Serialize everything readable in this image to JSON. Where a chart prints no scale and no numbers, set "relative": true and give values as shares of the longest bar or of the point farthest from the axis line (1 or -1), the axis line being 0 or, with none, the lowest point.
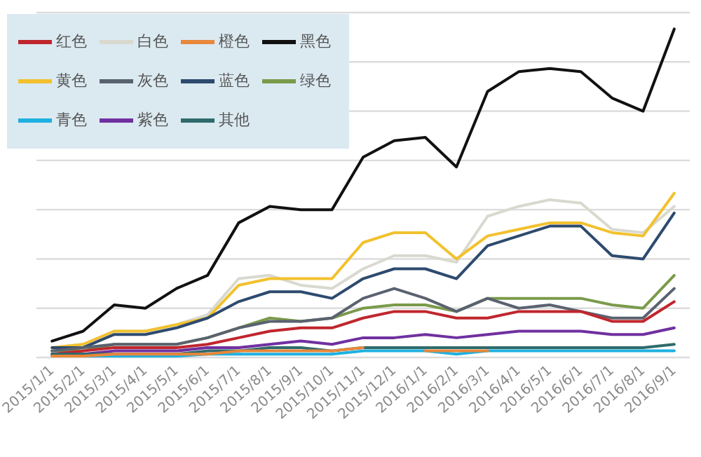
{
  "chart_data": {
    "type": "line",
    "relative": true,
    "grid": "y",
    "legend": "top left",
    "categories": [
      "2015/1/1",
      "2015/2/1",
      "2015/3/1",
      "2015/4/1",
      "2015/5/1",
      "2015/6/1",
      "2015/7/1",
      "2015/8/1",
      "2015/9/1",
      "2015/10/1",
      "2015/11/1",
      "2015/12/1",
      "2016/1/1",
      "2016/2/1",
      "2016/3/1",
      "2016/4/1",
      "2016/5/1",
      "2016/6/1",
      "2016/7/1",
      "2016/8/1",
      "2016/9/1"
    ],
    "series": [
      {
        "name": "红色",
        "color": "#c0262d",
        "values": [
          0.01,
          0.02,
          0.03,
          0.03,
          0.03,
          0.04,
          0.06,
          0.08,
          0.09,
          0.09,
          0.12,
          0.14,
          0.14,
          0.12,
          0.12,
          0.14,
          0.14,
          0.14,
          0.11,
          0.11,
          0.17
        ]
      },
      {
        "name": "白色",
        "color": "#d9d9d0",
        "values": [
          0.03,
          0.04,
          0.08,
          0.08,
          0.1,
          0.13,
          0.24,
          0.25,
          0.22,
          0.21,
          0.27,
          0.31,
          0.31,
          0.29,
          0.43,
          0.46,
          0.48,
          0.47,
          0.39,
          0.38,
          0.46
        ]
      },
      {
        "name": "橙色",
        "color": "#e8873a",
        "values": [
          0.004,
          0.004,
          0.01,
          0.01,
          0.01,
          0.01,
          0.02,
          0.02,
          0.02,
          0.02,
          0.03,
          null,
          0.02,
          0.02,
          0.02,
          null,
          null,
          null,
          null,
          null,
          null
        ]
      },
      {
        "name": "黑色",
        "color": "#111111",
        "values": [
          0.05,
          0.08,
          0.16,
          0.15,
          0.21,
          0.25,
          0.41,
          0.46,
          0.45,
          0.45,
          0.61,
          0.66,
          0.67,
          0.58,
          0.81,
          0.87,
          0.88,
          0.87,
          0.79,
          0.75,
          1
        ]
      },
      {
        "name": "黄色",
        "color": "#f2c12e",
        "values": [
          0.03,
          0.04,
          0.08,
          0.08,
          0.1,
          0.12,
          0.22,
          0.24,
          0.24,
          0.24,
          0.35,
          0.38,
          0.38,
          0.3,
          0.37,
          0.39,
          0.41,
          0.41,
          0.38,
          0.37,
          0.5
        ]
      },
      {
        "name": "灰色",
        "color": "#5a6270",
        "values": [
          0.02,
          0.03,
          0.04,
          0.04,
          0.04,
          0.06,
          0.09,
          0.11,
          0.11,
          0.12,
          0.18,
          0.21,
          0.18,
          0.14,
          0.18,
          0.15,
          0.16,
          0.14,
          0.12,
          0.12,
          0.21
        ]
      },
      {
        "name": "蓝色",
        "color": "#2e4a6e",
        "values": [
          0.03,
          0.03,
          0.07,
          0.07,
          0.09,
          0.12,
          0.17,
          0.2,
          0.2,
          0.18,
          0.24,
          0.27,
          0.27,
          0.24,
          0.34,
          0.37,
          0.4,
          0.4,
          0.31,
          0.3,
          0.44
        ]
      },
      {
        "name": "绿色",
        "color": "#7a9a4a",
        "values": [
          0.02,
          0.02,
          0.04,
          0.04,
          0.04,
          0.06,
          0.09,
          0.12,
          0.11,
          0.12,
          0.15,
          0.16,
          0.16,
          0.14,
          0.18,
          0.18,
          0.18,
          0.18,
          0.16,
          0.15,
          0.25
        ]
      },
      {
        "name": "青色",
        "color": "#1fb0e0",
        "values": [
          0.004,
          0.004,
          0.004,
          0.004,
          0.004,
          0.01,
          0.01,
          0.01,
          0.01,
          0.01,
          0.02,
          0.02,
          0.02,
          0.01,
          0.02,
          0.02,
          0.02,
          0.02,
          0.02,
          0.02,
          0.02
        ]
      },
      {
        "name": "紫色",
        "color": "#7030a0",
        "values": [
          0.01,
          0.01,
          0.02,
          0.02,
          0.02,
          0.03,
          0.03,
          0.04,
          0.05,
          0.04,
          0.06,
          0.06,
          0.07,
          0.06,
          0.07,
          0.08,
          0.08,
          0.08,
          0.07,
          0.07,
          0.09
        ]
      },
      {
        "name": "其他",
        "color": "#2f6b6b",
        "values": [
          0.01,
          0.01,
          0.01,
          0.01,
          0.01,
          0.02,
          0.02,
          0.03,
          0.03,
          0.02,
          0.03,
          0.03,
          0.03,
          0.03,
          0.03,
          0.03,
          0.03,
          0.03,
          0.03,
          0.03,
          0.04
        ]
      }
    ]
  }
}
